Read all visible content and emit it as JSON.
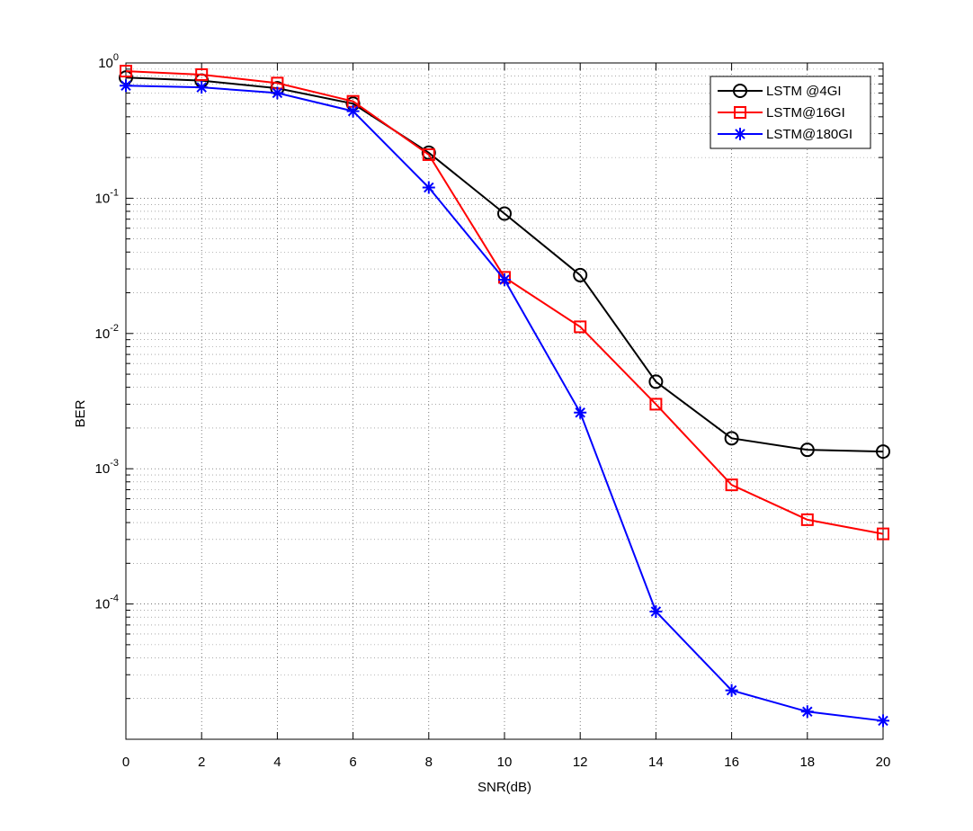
{
  "chart_data": {
    "type": "line",
    "xlabel": "SNR(dB)",
    "ylabel": "BER",
    "x": [
      0,
      2,
      4,
      6,
      8,
      10,
      12,
      14,
      16,
      18,
      20
    ],
    "xlim": [
      0,
      20
    ],
    "xticks": [
      0,
      2,
      4,
      6,
      8,
      10,
      12,
      14,
      16,
      18,
      20
    ],
    "ylim": [
      1e-05,
      1
    ],
    "yscale": "log",
    "yticks": [
      {
        "value": 0.0001,
        "label": "10^-4"
      },
      {
        "value": 0.001,
        "label": "10^-3"
      },
      {
        "value": 0.01,
        "label": "10^-2"
      },
      {
        "value": 0.1,
        "label": "10^-1"
      },
      {
        "value": 1,
        "label": "10^0"
      }
    ],
    "grid": true,
    "legend": "northeast",
    "series": [
      {
        "name": "LSTM @4GI",
        "color": "#000000",
        "marker": "circle",
        "values": [
          0.78,
          0.74,
          0.65,
          0.5,
          0.217,
          0.077,
          0.027,
          0.0044,
          0.00168,
          0.00138,
          0.00134
        ]
      },
      {
        "name": "LSTM@16GI",
        "color": "#ff0000",
        "marker": "square",
        "values": [
          0.87,
          0.82,
          0.71,
          0.52,
          0.21,
          0.026,
          0.0112,
          0.003,
          0.00076,
          0.00042,
          0.00033
        ]
      },
      {
        "name": "LSTM@180GI",
        "color": "#0000ff",
        "marker": "star",
        "values": [
          0.68,
          0.66,
          0.6,
          0.44,
          0.12,
          0.025,
          0.0026,
          8.8e-05,
          2.3e-05,
          1.6e-05,
          1.37e-05
        ]
      }
    ]
  }
}
